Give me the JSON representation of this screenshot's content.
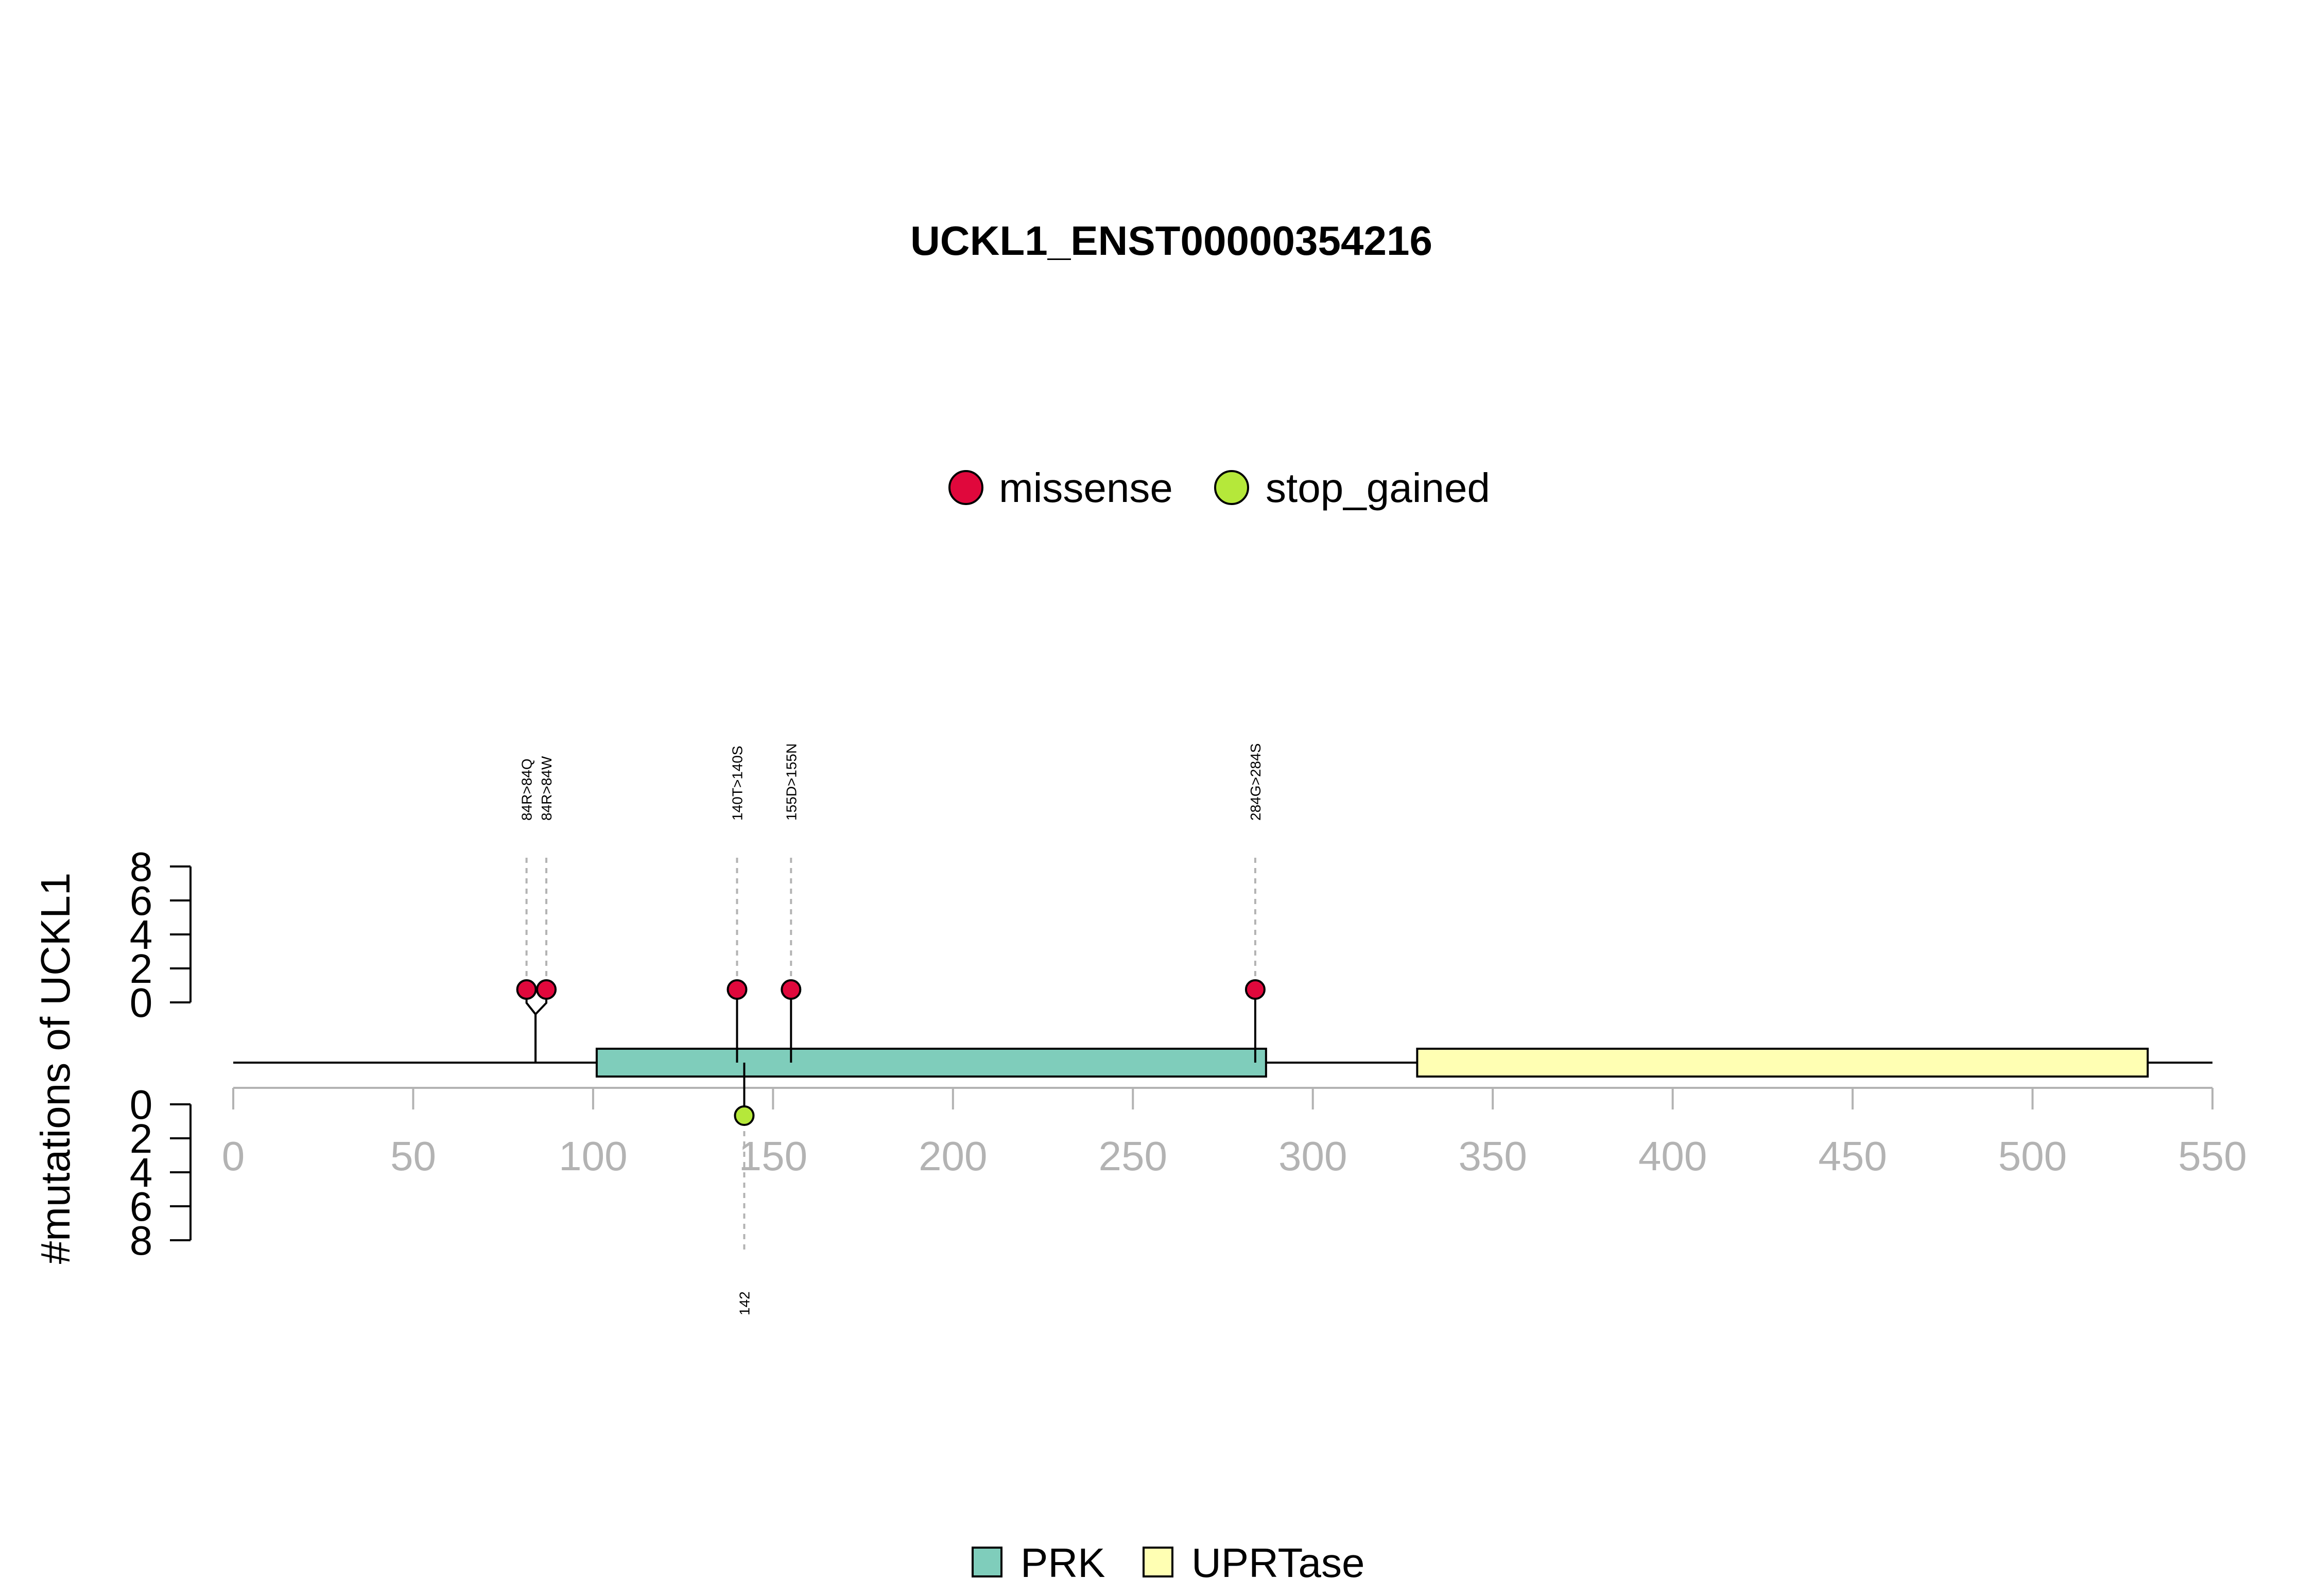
{
  "colors": {
    "missense": "#e0083c",
    "stop_gained": "#b5e83a",
    "PRK": "#7fcdbb",
    "UPRTase": "#ffffb3",
    "axis_gray": "#b3b3b3",
    "dashed_gray": "#b3b3b3",
    "black": "#000000"
  },
  "chart_data": {
    "type": "lollipop",
    "title": "UCKL1_ENST00000354216",
    "ylabel": "#mutations of UCKL1",
    "xlim": [
      0,
      550
    ],
    "x_ticks": [
      0,
      50,
      100,
      150,
      200,
      250,
      300,
      350,
      400,
      450,
      500,
      550
    ],
    "y_ticks": [
      0,
      2,
      4,
      6,
      8
    ],
    "ylim": [
      0,
      8
    ],
    "protein_length": 550,
    "mutation_legend": [
      {
        "name": "missense",
        "color": "#e0083c"
      },
      {
        "name": "stop_gained",
        "color": "#b5e83a"
      }
    ],
    "domain_legend": [
      {
        "name": "PRK",
        "color": "#7fcdbb"
      },
      {
        "name": "UPRTase",
        "color": "#ffffb3"
      }
    ],
    "domains": [
      {
        "name": "PRK",
        "start": 101,
        "end": 287
      },
      {
        "name": "UPRTase",
        "start": 329,
        "end": 532
      }
    ],
    "mutations_top": [
      {
        "label": "84R>84Q",
        "position": 84,
        "display_position": 81.5,
        "count": 1,
        "type": "missense"
      },
      {
        "label": "84R>84W",
        "position": 84,
        "display_position": 87,
        "count": 1,
        "type": "missense"
      },
      {
        "label": "140T>140S",
        "position": 140,
        "display_position": 140,
        "count": 1,
        "type": "missense"
      },
      {
        "label": "155D>155N",
        "position": 155,
        "display_position": 155,
        "count": 1,
        "type": "missense"
      },
      {
        "label": "284G>284S",
        "position": 284,
        "display_position": 284,
        "count": 1,
        "type": "missense"
      }
    ],
    "mutations_bottom": [
      {
        "label": "142",
        "position": 142,
        "display_position": 142,
        "count": 1,
        "type": "stop_gained"
      }
    ]
  }
}
